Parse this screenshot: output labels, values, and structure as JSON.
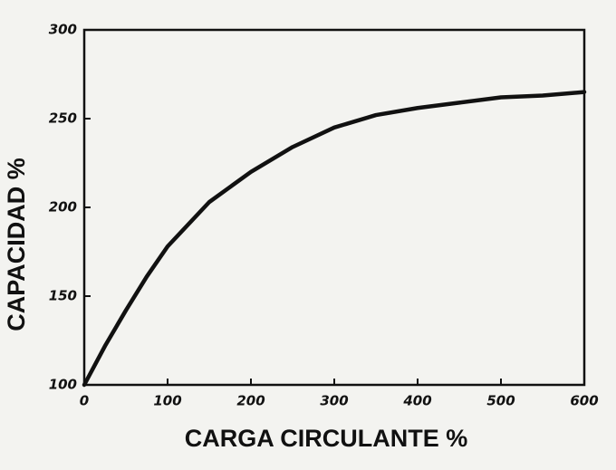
{
  "chart_data": {
    "type": "line",
    "xlabel": "CARGA CIRCULANTE %",
    "ylabel": "CAPACIDAD %",
    "x": [
      0,
      25,
      50,
      75,
      100,
      150,
      200,
      250,
      300,
      350,
      400,
      450,
      500,
      550,
      600
    ],
    "series": [
      {
        "color": "#111111",
        "values": [
          100,
          122,
          142,
          161,
          178,
          203,
          220,
          234,
          245,
          252,
          256,
          259,
          262,
          263,
          265
        ]
      }
    ],
    "xlim": [
      0,
      600
    ],
    "xticks": [
      0,
      100,
      200,
      300,
      400,
      500,
      600
    ],
    "ylim": [
      100,
      300
    ],
    "yticks": [
      100,
      150,
      200,
      250,
      300
    ]
  }
}
